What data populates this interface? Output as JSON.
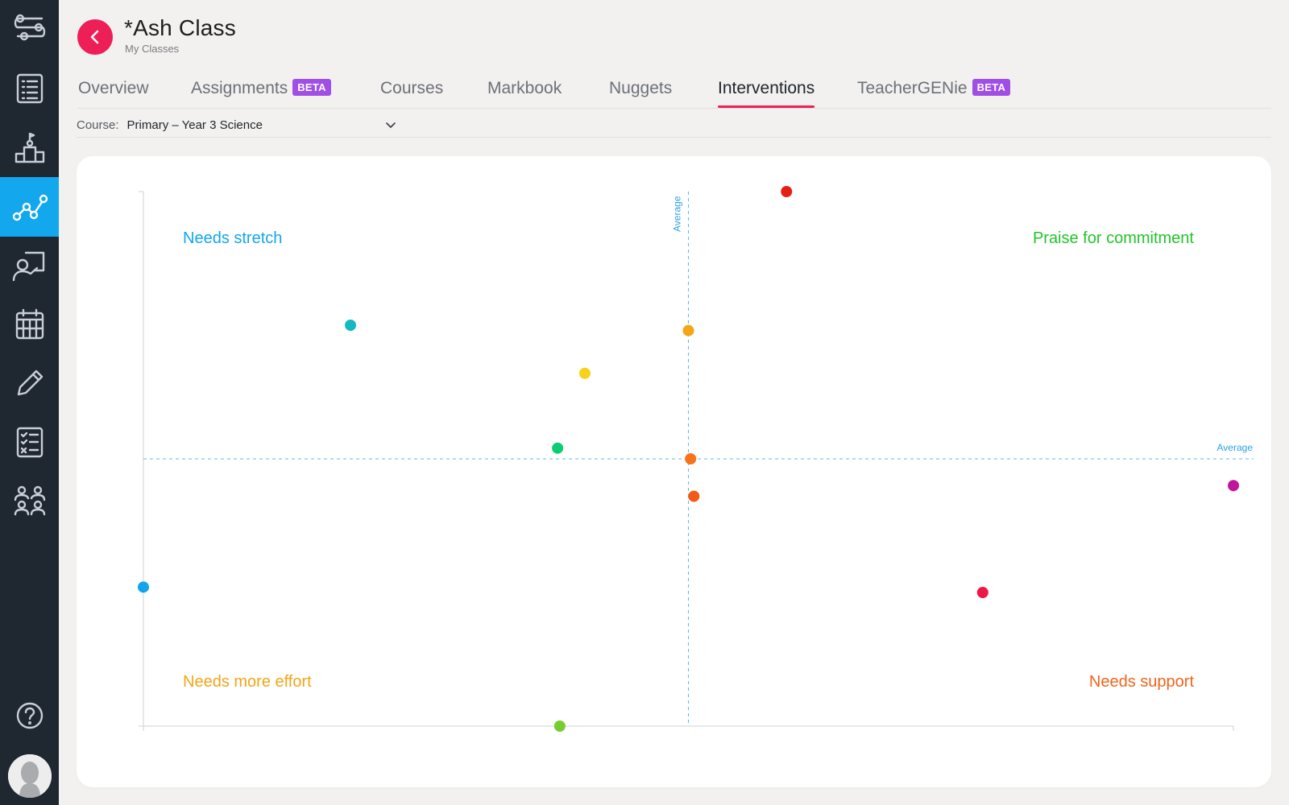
{
  "header": {
    "title": "*Ash Class",
    "breadcrumb": "My Classes"
  },
  "tabs": [
    {
      "label": "Overview"
    },
    {
      "label": "Assignments",
      "badge": "BETA"
    },
    {
      "label": "Courses"
    },
    {
      "label": "Markbook"
    },
    {
      "label": "Nuggets"
    },
    {
      "label": "Interventions",
      "active": true
    },
    {
      "label": "TeacherGENie",
      "badge": "BETA"
    }
  ],
  "course": {
    "label": "Course:",
    "selected": "Primary – Year 3 Science"
  },
  "sidebar": {
    "items": [
      {
        "icon": "settings-flow-icon"
      },
      {
        "icon": "list-icon"
      },
      {
        "icon": "podium-icon"
      },
      {
        "icon": "analytics-icon",
        "active": true
      },
      {
        "icon": "teacher-icon"
      },
      {
        "icon": "calendar-icon"
      },
      {
        "icon": "pencil-icon"
      },
      {
        "icon": "checklist-icon"
      },
      {
        "icon": "people-icon"
      },
      {
        "icon": "help-icon"
      }
    ]
  },
  "colors": {
    "accent": "#ee1e56",
    "sidebar_bg": "#1f2731",
    "sidebar_active": "#13a7ee",
    "beta": "#a04ee6"
  },
  "chart_data": {
    "type": "scatter",
    "xlim": [
      0,
      100
    ],
    "ylim": [
      0,
      100
    ],
    "x_average": 50,
    "y_average": 50,
    "average_label": "Average",
    "quadrant_labels": {
      "top_left": {
        "text": "Needs stretch",
        "color": "#12a5ee"
      },
      "top_right": {
        "text": "Praise for commitment",
        "color": "#22c42a"
      },
      "bottom_left": {
        "text": "Needs more effort",
        "color": "#f2a516"
      },
      "bottom_right": {
        "text": "Needs support",
        "color": "#f2641b"
      }
    },
    "points": [
      {
        "x": 59,
        "y": 100,
        "color": "#e42014"
      },
      {
        "x": 19,
        "y": 75,
        "color": "#14b9c3"
      },
      {
        "x": 50,
        "y": 74,
        "color": "#f5a614"
      },
      {
        "x": 40.5,
        "y": 66,
        "color": "#f7d11a"
      },
      {
        "x": 38,
        "y": 52,
        "color": "#0dcd72"
      },
      {
        "x": 50.2,
        "y": 50,
        "color": "#f87217"
      },
      {
        "x": 50.5,
        "y": 43,
        "color": "#f25a16"
      },
      {
        "x": 100,
        "y": 45,
        "color": "#c2159c"
      },
      {
        "x": 0,
        "y": 26,
        "color": "#12a5ee"
      },
      {
        "x": 77,
        "y": 25,
        "color": "#ee1745"
      },
      {
        "x": 38.2,
        "y": 0,
        "color": "#75cd2f"
      }
    ]
  }
}
